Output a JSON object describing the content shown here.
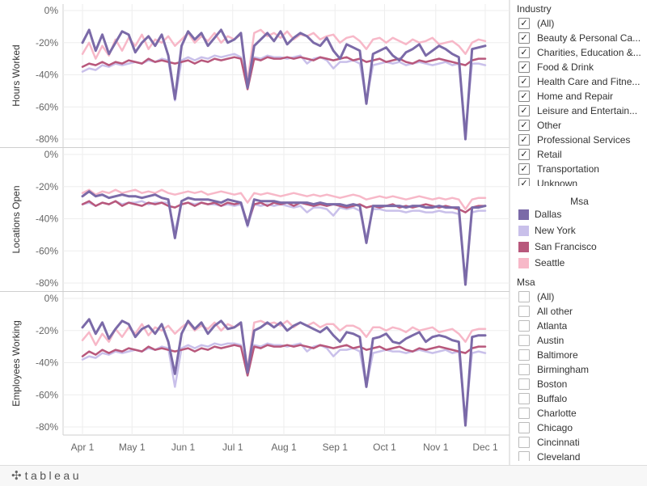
{
  "chart_data": {
    "type": "line",
    "panels": [
      {
        "ylabel": "Hours Worked"
      },
      {
        "ylabel": "Locations Open"
      },
      {
        "ylabel": "Employees Working"
      }
    ],
    "y_ticks": [
      "0%",
      "-20%",
      "-40%",
      "-60%",
      "-80%"
    ],
    "y_tick_values": [
      0,
      -20,
      -40,
      -60,
      -80
    ],
    "ylim": [
      -85,
      0
    ],
    "x_ticks": [
      "Apr 1",
      "May 1",
      "Jun 1",
      "Jul 1",
      "Aug 1",
      "Sep 1",
      "Oct 1",
      "Nov 1",
      "Dec 1"
    ],
    "x_tick_dates": [
      "2020-04-01",
      "2020-05-01",
      "2020-06-01",
      "2020-07-01",
      "2020-08-01",
      "2020-09-01",
      "2020-10-01",
      "2020-11-01",
      "2020-12-01"
    ],
    "x_range": [
      "2020-04-01",
      "2020-12-01"
    ],
    "series": [
      {
        "name": "Dallas",
        "color": "#7b6aa8",
        "width": 3,
        "values": [
          [
            [
              -20,
              -12,
              -25,
              -15,
              -27,
              -20,
              -13,
              -15,
              -26,
              -20,
              -16,
              -22,
              -15,
              -28,
              -55,
              -22,
              -13,
              -18,
              -14,
              -22,
              -17,
              -12,
              -20,
              -18,
              -14,
              -48,
              -22,
              -18,
              -14,
              -19,
              -13,
              -21,
              -17,
              -14,
              -16,
              -20,
              -22,
              -17,
              -25,
              -30,
              -21,
              -23,
              -25,
              -58,
              -27,
              -25,
              -23,
              -28,
              -31,
              -26,
              -24,
              -21,
              -28,
              -25,
              -22,
              -24,
              -27,
              -29,
              -80,
              -24,
              -23,
              -22
            ]
          ],
          [
            [
              -26,
              -23,
              -26,
              -25,
              -27,
              -26,
              -25,
              -26,
              -26,
              -27,
              -26,
              -25,
              -27,
              -28,
              -52,
              -29,
              -27,
              -28,
              -28,
              -28,
              -29,
              -30,
              -28,
              -29,
              -30,
              -44,
              -28,
              -29,
              -29,
              -29,
              -30,
              -30,
              -30,
              -30,
              -30,
              -31,
              -30,
              -31,
              -31,
              -31,
              -32,
              -31,
              -32,
              -55,
              -32,
              -32,
              -32,
              -32,
              -32,
              -33,
              -32,
              -32,
              -33,
              -33,
              -32,
              -33,
              -33,
              -33,
              -81,
              -33,
              -33,
              -32
            ]
          ],
          [
            [
              -18,
              -13,
              -22,
              -15,
              -25,
              -19,
              -14,
              -16,
              -24,
              -19,
              -17,
              -22,
              -16,
              -27,
              -47,
              -22,
              -14,
              -19,
              -15,
              -22,
              -17,
              -14,
              -19,
              -18,
              -15,
              -46,
              -20,
              -18,
              -15,
              -18,
              -15,
              -20,
              -17,
              -15,
              -17,
              -19,
              -21,
              -18,
              -23,
              -27,
              -21,
              -22,
              -24,
              -55,
              -25,
              -24,
              -22,
              -27,
              -28,
              -25,
              -23,
              -21,
              -27,
              -24,
              -23,
              -24,
              -26,
              -27,
              -79,
              -24,
              -23,
              -23
            ]
          ]
        ]
      },
      {
        "name": "New York",
        "color": "#c9c0ea",
        "width": 2.5,
        "values": [
          [
            [
              -38,
              -36,
              -37,
              -34,
              -35,
              -33,
              -34,
              -33,
              -32,
              -33,
              -31,
              -32,
              -30,
              -31,
              -56,
              -31,
              -29,
              -31,
              -29,
              -30,
              -28,
              -29,
              -28,
              -27,
              -29,
              -48,
              -29,
              -30,
              -28,
              -29,
              -29,
              -30,
              -29,
              -28,
              -33,
              -30,
              -29,
              -31,
              -36,
              -32,
              -32,
              -31,
              -33,
              -56,
              -34,
              -33,
              -32,
              -33,
              -32,
              -34,
              -33,
              -32,
              -33,
              -34,
              -33,
              -32,
              -34,
              -33,
              -75,
              -33,
              -33,
              -34
            ]
          ],
          [
            [
              -31,
              -30,
              -32,
              -30,
              -31,
              -29,
              -31,
              -30,
              -30,
              -29,
              -31,
              -30,
              -30,
              -30,
              -48,
              -31,
              -30,
              -31,
              -30,
              -31,
              -31,
              -32,
              -31,
              -32,
              -31,
              -45,
              -31,
              -32,
              -31,
              -32,
              -31,
              -32,
              -33,
              -32,
              -36,
              -33,
              -33,
              -34,
              -38,
              -33,
              -34,
              -33,
              -35,
              -52,
              -34,
              -34,
              -35,
              -35,
              -35,
              -36,
              -35,
              -35,
              -36,
              -36,
              -35,
              -36,
              -36,
              -37,
              -78,
              -36,
              -35,
              -35
            ]
          ],
          [
            [
              -38,
              -36,
              -37,
              -34,
              -35,
              -33,
              -34,
              -33,
              -32,
              -33,
              -31,
              -32,
              -30,
              -31,
              -55,
              -31,
              -29,
              -31,
              -29,
              -30,
              -28,
              -29,
              -28,
              -28,
              -29,
              -48,
              -29,
              -30,
              -28,
              -29,
              -29,
              -30,
              -29,
              -28,
              -33,
              -30,
              -29,
              -31,
              -36,
              -32,
              -32,
              -31,
              -33,
              -55,
              -34,
              -33,
              -32,
              -33,
              -33,
              -34,
              -33,
              -32,
              -33,
              -34,
              -33,
              -32,
              -34,
              -33,
              -75,
              -34,
              -33,
              -34
            ]
          ]
        ]
      },
      {
        "name": "San Francisco",
        "color": "#b8587c",
        "width": 2.5,
        "values": [
          [
            [
              -35,
              -33,
              -34,
              -32,
              -34,
              -32,
              -33,
              -31,
              -32,
              -33,
              -30,
              -32,
              -31,
              -32,
              -33,
              -32,
              -31,
              -33,
              -31,
              -32,
              -30,
              -31,
              -30,
              -29,
              -30,
              -49,
              -30,
              -31,
              -29,
              -30,
              -30,
              -29,
              -30,
              -29,
              -30,
              -31,
              -29,
              -30,
              -31,
              -30,
              -29,
              -31,
              -30,
              -32,
              -31,
              -30,
              -32,
              -31,
              -30,
              -32,
              -33,
              -31,
              -32,
              -31,
              -30,
              -31,
              -32,
              -33,
              -34,
              -31,
              -30,
              -30
            ]
          ],
          [
            [
              -31,
              -29,
              -32,
              -30,
              -31,
              -29,
              -32,
              -30,
              -31,
              -32,
              -30,
              -31,
              -30,
              -32,
              -33,
              -31,
              -30,
              -32,
              -30,
              -31,
              -30,
              -32,
              -30,
              -31,
              -30,
              -43,
              -31,
              -30,
              -32,
              -30,
              -31,
              -30,
              -32,
              -30,
              -31,
              -32,
              -31,
              -32,
              -31,
              -32,
              -33,
              -32,
              -31,
              -33,
              -32,
              -33,
              -32,
              -31,
              -33,
              -32,
              -33,
              -32,
              -31,
              -32,
              -33,
              -32,
              -33,
              -34,
              -36,
              -33,
              -32,
              -32
            ]
          ],
          [
            [
              -36,
              -33,
              -35,
              -32,
              -34,
              -32,
              -33,
              -31,
              -32,
              -33,
              -30,
              -32,
              -31,
              -32,
              -33,
              -32,
              -31,
              -33,
              -31,
              -32,
              -30,
              -31,
              -30,
              -29,
              -30,
              -48,
              -30,
              -31,
              -29,
              -30,
              -30,
              -29,
              -30,
              -29,
              -30,
              -31,
              -29,
              -30,
              -31,
              -30,
              -29,
              -31,
              -30,
              -32,
              -31,
              -30,
              -32,
              -31,
              -30,
              -32,
              -33,
              -31,
              -32,
              -31,
              -30,
              -31,
              -32,
              -33,
              -34,
              -31,
              -30,
              -30
            ]
          ]
        ]
      },
      {
        "name": "Seattle",
        "color": "#f7b8c8",
        "width": 2.5,
        "values": [
          [
            [
              -27,
              -20,
              -30,
              -22,
              -28,
              -18,
              -25,
              -17,
              -22,
              -15,
              -24,
              -18,
              -20,
              -16,
              -22,
              -18,
              -14,
              -20,
              -16,
              -19,
              -14,
              -20,
              -16,
              -18,
              -15,
              -44,
              -14,
              -12,
              -16,
              -14,
              -17,
              -13,
              -18,
              -15,
              -16,
              -14,
              -18,
              -16,
              -15,
              -20,
              -17,
              -16,
              -19,
              -24,
              -18,
              -17,
              -20,
              -17,
              -19,
              -21,
              -18,
              -20,
              -19,
              -17,
              -21,
              -20,
              -19,
              -22,
              -27,
              -20,
              -18,
              -19
            ]
          ],
          [
            [
              -24,
              -22,
              -25,
              -23,
              -24,
              -22,
              -24,
              -23,
              -22,
              -24,
              -23,
              -24,
              -22,
              -24,
              -25,
              -24,
              -23,
              -24,
              -23,
              -25,
              -24,
              -23,
              -24,
              -25,
              -24,
              -30,
              -24,
              -25,
              -24,
              -25,
              -26,
              -25,
              -24,
              -25,
              -26,
              -25,
              -26,
              -25,
              -26,
              -27,
              -26,
              -25,
              -26,
              -28,
              -27,
              -26,
              -27,
              -26,
              -27,
              -28,
              -27,
              -26,
              -27,
              -28,
              -27,
              -28,
              -27,
              -28,
              -34,
              -28,
              -27,
              -27
            ]
          ],
          [
            [
              -26,
              -21,
              -29,
              -22,
              -27,
              -19,
              -24,
              -18,
              -22,
              -16,
              -23,
              -18,
              -20,
              -17,
              -22,
              -18,
              -15,
              -20,
              -17,
              -19,
              -15,
              -20,
              -16,
              -18,
              -16,
              -44,
              -15,
              -14,
              -16,
              -15,
              -17,
              -14,
              -18,
              -15,
              -17,
              -15,
              -18,
              -16,
              -16,
              -20,
              -17,
              -17,
              -19,
              -24,
              -18,
              -18,
              -20,
              -18,
              -19,
              -21,
              -18,
              -20,
              -19,
              -18,
              -21,
              -20,
              -19,
              -22,
              -27,
              -20,
              -19,
              -19
            ]
          ]
        ]
      }
    ]
  },
  "sidebar": {
    "industry_title": "Industry",
    "industry_items": [
      {
        "label": "(All)",
        "checked": true
      },
      {
        "label": "Beauty & Personal Ca...",
        "checked": true
      },
      {
        "label": "Charities, Education &...",
        "checked": true
      },
      {
        "label": "Food & Drink",
        "checked": true
      },
      {
        "label": "Health Care and Fitne...",
        "checked": true
      },
      {
        "label": "Home and Repair",
        "checked": true
      },
      {
        "label": "Leisure and Entertain...",
        "checked": true
      },
      {
        "label": "Other",
        "checked": true
      },
      {
        "label": "Professional Services",
        "checked": true
      },
      {
        "label": "Retail",
        "checked": true
      },
      {
        "label": "Transportation",
        "checked": true
      },
      {
        "label": "Unknown",
        "checked": true
      }
    ],
    "legend_title": "Msa",
    "legend_items": [
      {
        "label": "Dallas",
        "color": "#7b6aa8"
      },
      {
        "label": "New York",
        "color": "#c9c0ea"
      },
      {
        "label": "San Francisco",
        "color": "#b8587c"
      },
      {
        "label": "Seattle",
        "color": "#f7b8c8"
      }
    ],
    "msa_title": "Msa",
    "msa_items": [
      {
        "label": "(All)",
        "checked": false
      },
      {
        "label": "All other",
        "checked": false
      },
      {
        "label": "Atlanta",
        "checked": false
      },
      {
        "label": "Austin",
        "checked": false
      },
      {
        "label": "Baltimore",
        "checked": false
      },
      {
        "label": "Birmingham",
        "checked": false
      },
      {
        "label": "Boston",
        "checked": false
      },
      {
        "label": "Buffalo",
        "checked": false
      },
      {
        "label": "Charlotte",
        "checked": false
      },
      {
        "label": "Chicago",
        "checked": false
      },
      {
        "label": "Cincinnati",
        "checked": false
      },
      {
        "label": "Cleveland",
        "checked": false
      }
    ]
  },
  "footer": {
    "logo_text": "tableau",
    "logo_mark": "✣"
  }
}
